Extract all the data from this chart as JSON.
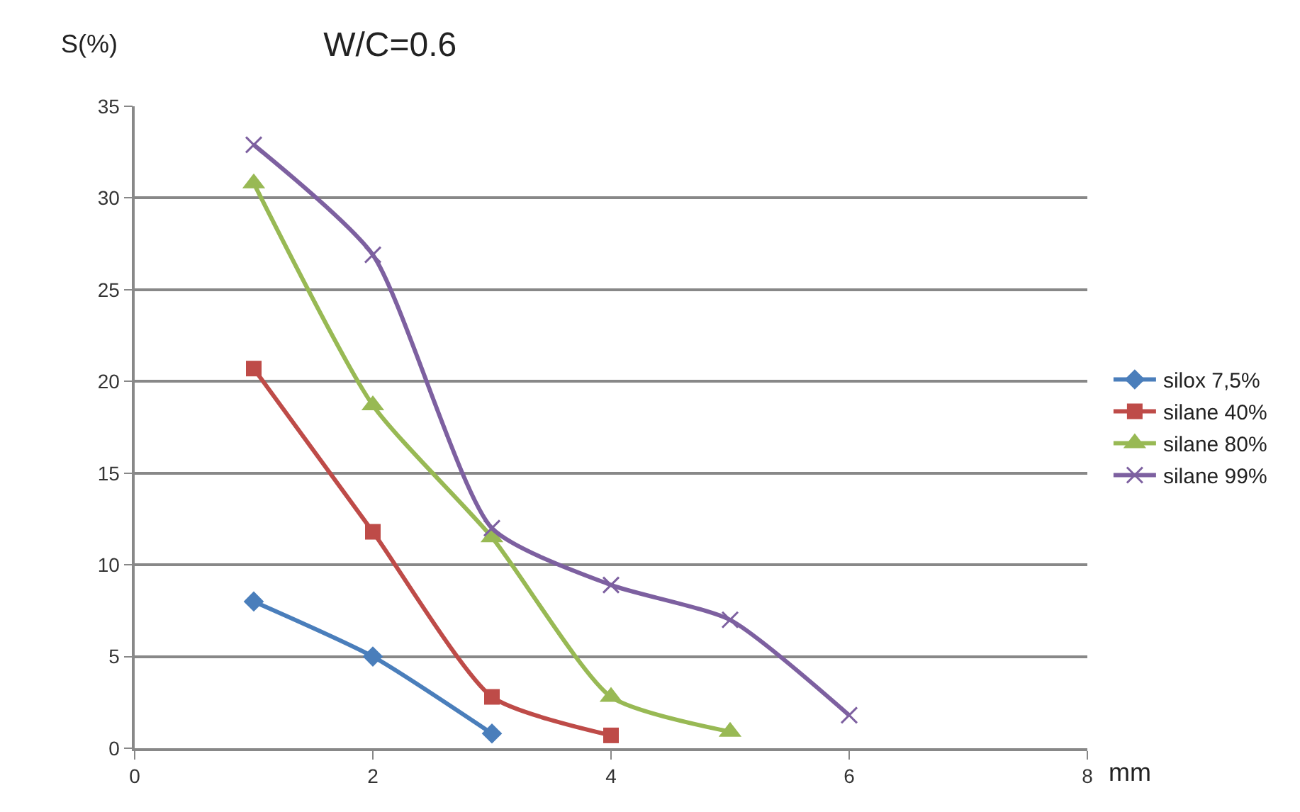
{
  "chart_data": {
    "type": "line",
    "title": "W/C=0.6",
    "xlabel": "mm",
    "ylabel": "S(%)",
    "xlim": [
      0,
      8
    ],
    "xticks": [
      0,
      2,
      4,
      6,
      8
    ],
    "ylim": [
      0,
      35
    ],
    "yticks": [
      0,
      5,
      10,
      15,
      20,
      25,
      30,
      35
    ],
    "grid": "y",
    "legend": "right",
    "line_style": "solid",
    "series": [
      {
        "name": "silox 7,5%",
        "color": "#4a7ebb",
        "marker": "diamond",
        "x": [
          1,
          2,
          3
        ],
        "values": [
          8,
          5,
          0.8
        ]
      },
      {
        "name": "silane 40%",
        "color": "#be4b48",
        "marker": "square",
        "x": [
          1,
          2,
          3,
          4
        ],
        "values": [
          20.7,
          11.8,
          2.8,
          0.7
        ]
      },
      {
        "name": "silane 80%",
        "color": "#98b954",
        "marker": "triangle",
        "x": [
          1,
          2,
          3,
          4,
          5
        ],
        "values": [
          30.8,
          18.7,
          11.5,
          2.8,
          0.9
        ]
      },
      {
        "name": "silane 99%",
        "color": "#7d60a0",
        "marker": "cross",
        "x": [
          1,
          2,
          3,
          4,
          5,
          6
        ],
        "values": [
          32.9,
          26.9,
          12,
          8.9,
          7,
          1.8
        ]
      }
    ]
  }
}
